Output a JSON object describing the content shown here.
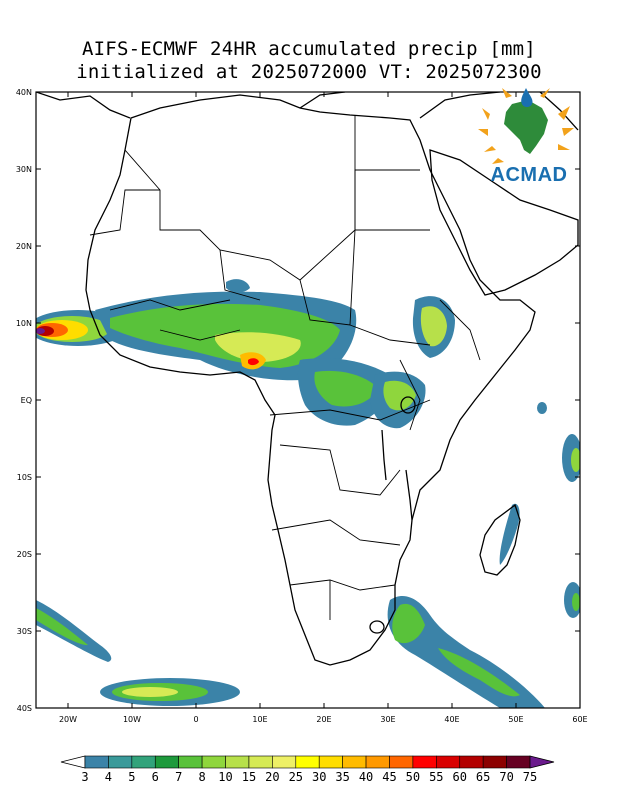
{
  "title": {
    "line1": "AIFS-ECMWF 24HR accumulated precip [mm]",
    "line2": "initialized at 2025072000 VT: 2025072300"
  },
  "map": {
    "lon_range": [
      -25,
      60
    ],
    "lat_range": [
      -40,
      40
    ],
    "lat_labels": [
      "40N",
      "30N",
      "20N",
      "10N",
      "EQ",
      "10S",
      "20S",
      "30S",
      "40S"
    ],
    "lon_labels": [
      "20W",
      "10W",
      "0",
      "10E",
      "20E",
      "30E",
      "40E",
      "50E",
      "60E"
    ]
  },
  "logo": {
    "text": "ACMAD",
    "icon": "africa-sun-logo-icon"
  },
  "colorbar": {
    "levels": [
      "3",
      "4",
      "5",
      "6",
      "7",
      "8",
      "10",
      "15",
      "20",
      "25",
      "30",
      "35",
      "40",
      "45",
      "50",
      "55",
      "60",
      "65",
      "70",
      "75"
    ],
    "colors": [
      "#ffffff",
      "#3b83a8",
      "#3a9a9a",
      "#32a37b",
      "#1e9a3c",
      "#59c23a",
      "#8fd63d",
      "#b7e04a",
      "#d6ea55",
      "#eef066",
      "#ffff00",
      "#ffdd00",
      "#ffbb00",
      "#ff9900",
      "#ff6600",
      "#ff0000",
      "#d90000",
      "#b30000",
      "#8c0000",
      "#660022",
      "#6a1a8c"
    ]
  }
}
